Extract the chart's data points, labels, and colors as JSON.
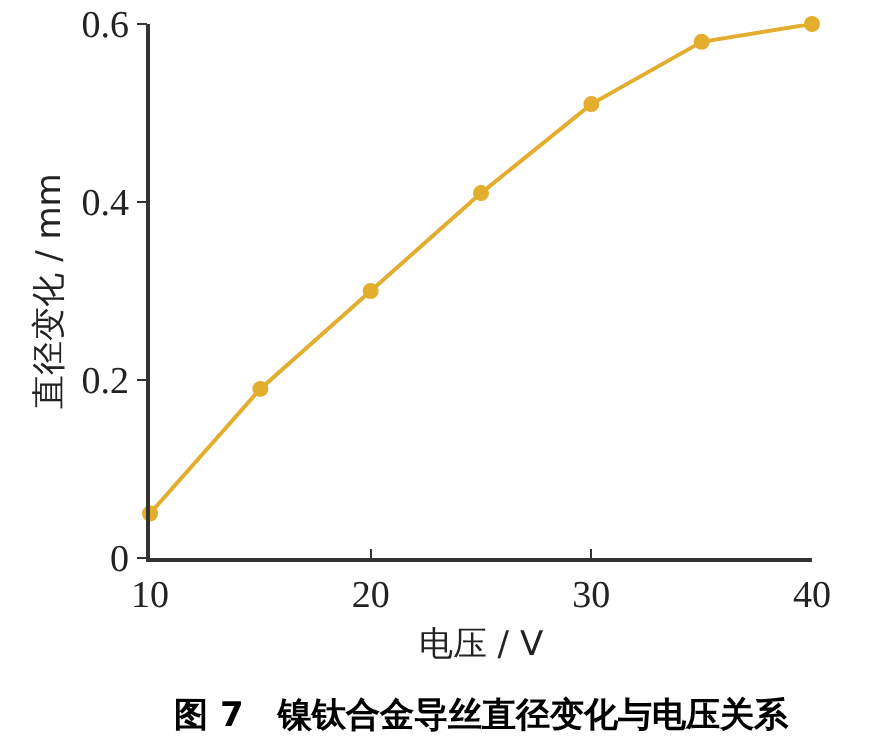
{
  "chart_data": {
    "type": "line",
    "title": "图 7　镍钛合金导丝直径变化与电压关系",
    "xlabel": "电压 / V",
    "ylabel": "直径变化 / mm",
    "x": [
      10,
      15,
      20,
      25,
      30,
      35,
      40
    ],
    "series": [
      {
        "color": "#e3ad2e",
        "values": [
          0.05,
          0.19,
          0.3,
          0.41,
          0.51,
          0.58,
          0.6
        ]
      }
    ],
    "xlim": [
      10,
      40
    ],
    "xticks": [
      10,
      20,
      30,
      40
    ],
    "ylim": [
      0,
      0.6
    ],
    "yticks": [
      0,
      0.2,
      0.4,
      0.6
    ],
    "marker": "circle",
    "line_style": "solid",
    "grid": false,
    "legend": false
  }
}
